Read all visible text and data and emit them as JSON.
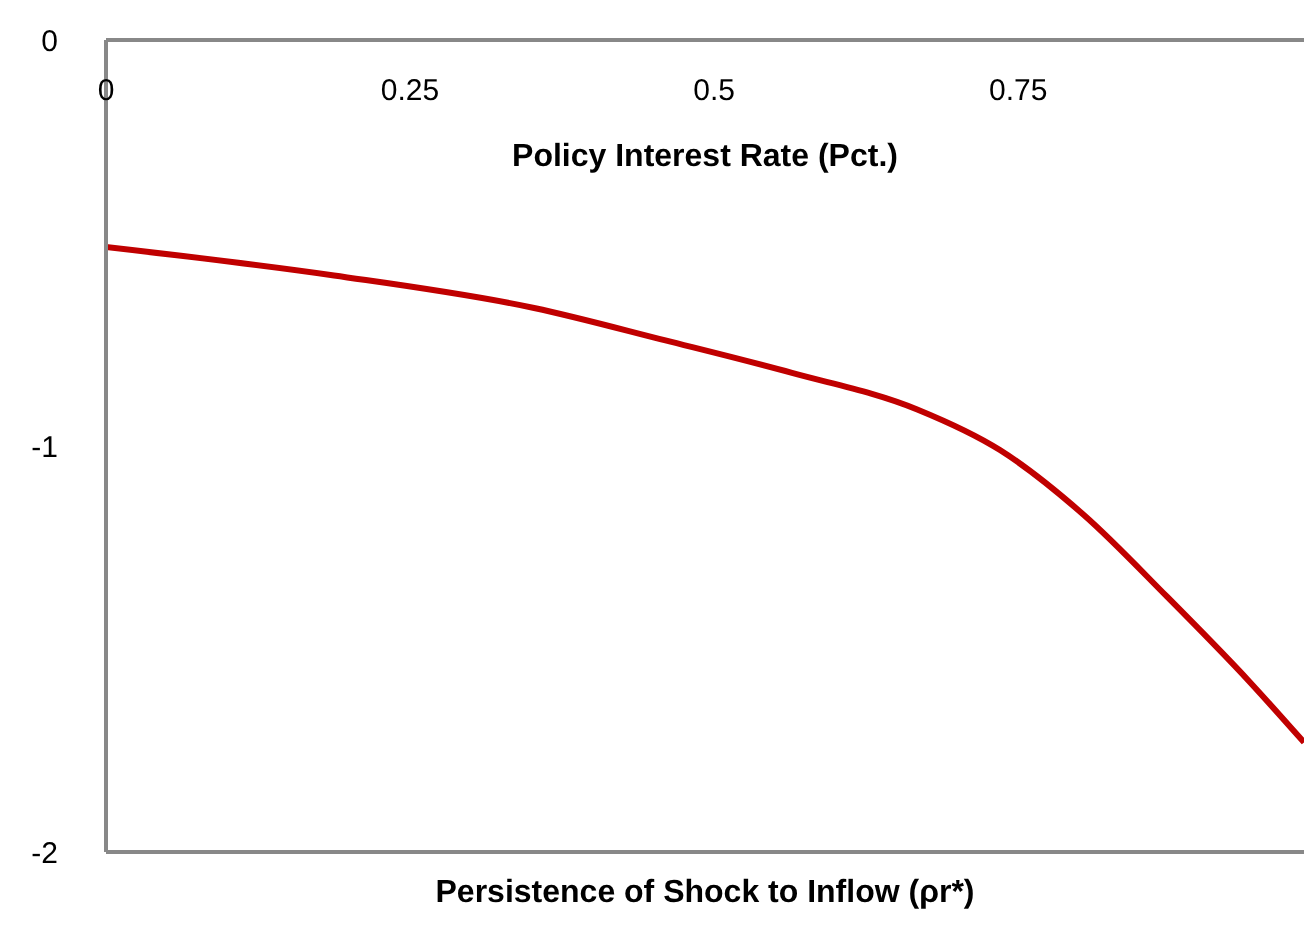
{
  "chart_data": {
    "type": "line",
    "xlabel": "Persistence of Shock to Inflow (ρr*)",
    "ylabel": "Policy Interest Rate (Pct.)",
    "x": [
      0,
      0.1875,
      0.352,
      0.46,
      0.564,
      0.667,
      0.735,
      0.804,
      0.872,
      0.94,
      0.985
    ],
    "series": [
      {
        "color": "#c00000",
        "values": [
          -0.51,
          -0.58,
          -0.66,
          -0.74,
          -0.82,
          -0.91,
          -1.01,
          -1.17,
          -1.37,
          -1.58,
          -1.73
        ]
      }
    ],
    "xlim": [
      0,
      0.985
    ],
    "xticks": [
      0,
      0.25,
      0.5,
      0.75
    ],
    "ylim": [
      -2,
      0
    ],
    "yticks": [
      0,
      -1,
      -2
    ],
    "grid": false,
    "legend": false,
    "marker": "none",
    "line_style": "solid"
  }
}
